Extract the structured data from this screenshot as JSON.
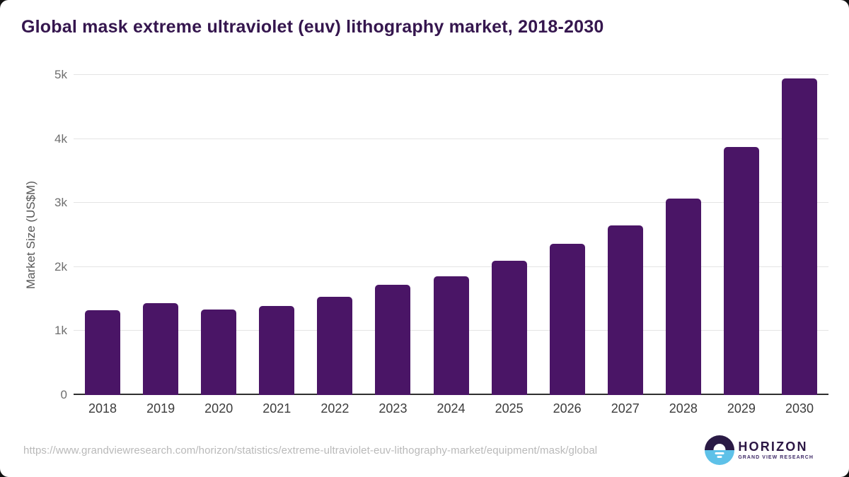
{
  "chart_data": {
    "type": "bar",
    "title": "Global mask extreme ultraviolet (euv) lithography market, 2018-2030",
    "xlabel": "",
    "ylabel": "Market Size (US$M)",
    "categories": [
      "2018",
      "2019",
      "2020",
      "2021",
      "2022",
      "2023",
      "2024",
      "2025",
      "2026",
      "2027",
      "2028",
      "2029",
      "2030"
    ],
    "values": [
      1320,
      1430,
      1340,
      1395,
      1530,
      1720,
      1850,
      2095,
      2365,
      2650,
      3070,
      3870,
      4950
    ],
    "ylim": [
      0,
      5000
    ],
    "yticks": [
      {
        "value": 0,
        "label": "0"
      },
      {
        "value": 1000,
        "label": "1k"
      },
      {
        "value": 2000,
        "label": "2k"
      },
      {
        "value": 3000,
        "label": "3k"
      },
      {
        "value": 4000,
        "label": "4k"
      },
      {
        "value": 5000,
        "label": "5k"
      },
      {
        "value": 5000,
        "label": "5k"
      }
    ],
    "grid": true,
    "legend": false,
    "bar_color": "#4a1566"
  },
  "colors": {
    "bar": "#4a1566",
    "title": "#35164e",
    "gridline": "#e4e4e4",
    "axis_line": "#2f2f2f",
    "source_url_text": "#b9b9b9",
    "logo_navy": "#2a1a45",
    "logo_blue": "#5ec1e8"
  },
  "footer": {
    "source_url": "https://www.grandviewresearch.com/horizon/statistics/extreme-ultraviolet-euv-lithography-market/equipment/mask/global",
    "logo": {
      "name": "HORIZON",
      "subtitle": "GRAND VIEW RESEARCH",
      "icon": "sun-over-horizon-icon"
    }
  }
}
